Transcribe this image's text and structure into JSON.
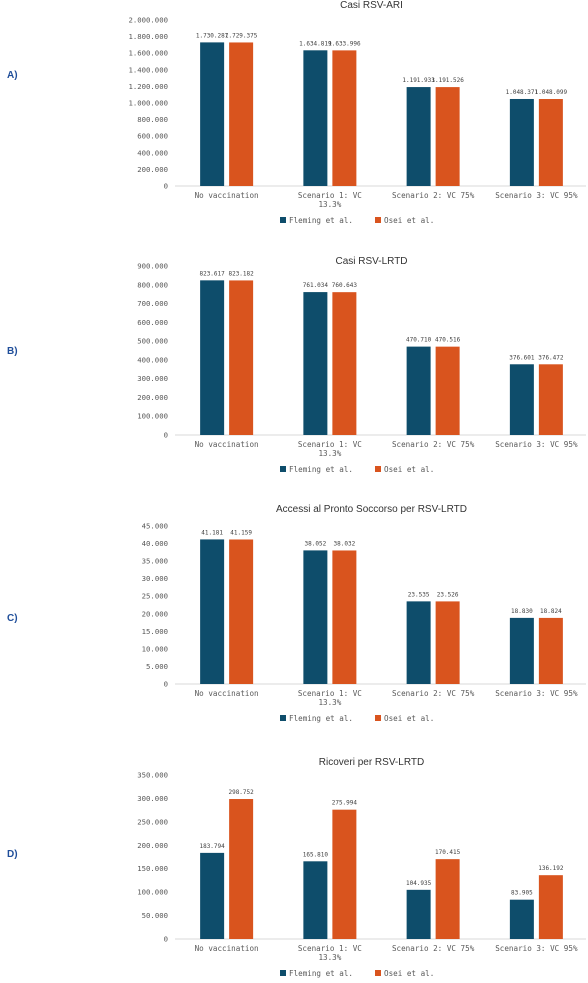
{
  "colors": {
    "fleming": "#0e4d6b",
    "osei": "#d9541e",
    "axis": "#d9d9d9"
  },
  "chart_data": [
    {
      "type": "bar",
      "panel_label": "A)",
      "title": "Casi RSV-ARI",
      "categories": [
        [
          "No vaccination"
        ],
        [
          "Scenario 1: VC",
          "13.3%"
        ],
        [
          "Scenario 2: VC 75%"
        ],
        [
          "Scenario 3: VC 95%"
        ]
      ],
      "series": [
        {
          "name": "Fleming et al.",
          "values": [
            1730287,
            1634819,
            1191933,
            1048371
          ],
          "labels": [
            "1.730.287",
            "1.634.819",
            "1.191.933",
            "1.048.371"
          ]
        },
        {
          "name": "Osei et al.",
          "values": [
            1729375,
            1633996,
            1191526,
            1048099
          ],
          "labels": [
            "1.729.375",
            "1.633.996",
            "1.191.526",
            "1.048.099"
          ]
        }
      ],
      "ylim": [
        0,
        2000000
      ],
      "yticks": [
        "2.000.000",
        "1.800.000",
        "1.600.000",
        "1.400.000",
        "1.200.000",
        "1.000.000",
        "800.000",
        "600.000",
        "400.000",
        "200.000",
        "0"
      ],
      "legend_position": "bottom",
      "grid": false
    },
    {
      "type": "bar",
      "panel_label": "B)",
      "title": "Casi RSV-LRTD",
      "categories": [
        [
          "No vaccination"
        ],
        [
          "Scenario 1: VC",
          "13.3%"
        ],
        [
          "Scenario 2: VC 75%"
        ],
        [
          "Scenario 3: VC 95%"
        ]
      ],
      "series": [
        {
          "name": "Fleming et al.",
          "values": [
            823617,
            761034,
            470710,
            376601
          ],
          "labels": [
            "823.617",
            "761.034",
            "470.710",
            "376.601"
          ]
        },
        {
          "name": "Osei et al.",
          "values": [
            823182,
            760643,
            470516,
            376472
          ],
          "labels": [
            "823.182",
            "760.643",
            "470.516",
            "376.472"
          ]
        }
      ],
      "ylim": [
        0,
        900000
      ],
      "yticks": [
        "900.000",
        "800.000",
        "700.000",
        "600.000",
        "500.000",
        "400.000",
        "300.000",
        "200.000",
        "100.000",
        "0"
      ],
      "legend_position": "bottom",
      "grid": false
    },
    {
      "type": "bar",
      "panel_label": "C)",
      "title": "Accessi al Pronto Soccorso per RSV-LRTD",
      "categories": [
        [
          "No vaccination"
        ],
        [
          "Scenario 1: VC",
          "13.3%"
        ],
        [
          "Scenario 2: VC 75%"
        ],
        [
          "Scenario 3: VC 95%"
        ]
      ],
      "series": [
        {
          "name": "Fleming et al.",
          "values": [
            41181,
            38052,
            23535,
            18830
          ],
          "labels": [
            "41.181",
            "38.052",
            "23.535",
            "18.830"
          ]
        },
        {
          "name": "Osei et al.",
          "values": [
            41159,
            38032,
            23526,
            18824
          ],
          "labels": [
            "41.159",
            "38.032",
            "23.526",
            "18.824"
          ]
        }
      ],
      "ylim": [
        0,
        45000
      ],
      "yticks": [
        "45.000",
        "40.000",
        "35.000",
        "30.000",
        "25.000",
        "20.000",
        "15.000",
        "10.000",
        "5.000",
        "0"
      ],
      "legend_position": "bottom",
      "grid": false
    },
    {
      "type": "bar",
      "panel_label": "D)",
      "title": "Ricoveri per RSV-LRTD",
      "categories": [
        [
          "No vaccination"
        ],
        [
          "Scenario 1: VC",
          "13.3%"
        ],
        [
          "Scenario 2: VC 75%"
        ],
        [
          "Scenario 3: VC 95%"
        ]
      ],
      "series": [
        {
          "name": "Fleming et al.",
          "values": [
            183794,
            165810,
            104935,
            83905
          ],
          "labels": [
            "183.794",
            "165.810",
            "104.935",
            "83.905"
          ]
        },
        {
          "name": "Osei et al.",
          "values": [
            298752,
            275994,
            170415,
            136192
          ],
          "labels": [
            "298.752",
            "275.994",
            "170.415",
            "136.192"
          ]
        }
      ],
      "ylim": [
        0,
        350000
      ],
      "yticks": [
        "350.000",
        "300.000",
        "250.000",
        "200.000",
        "150.000",
        "100.000",
        "50.000",
        "0"
      ],
      "legend_position": "bottom",
      "grid": false
    }
  ]
}
